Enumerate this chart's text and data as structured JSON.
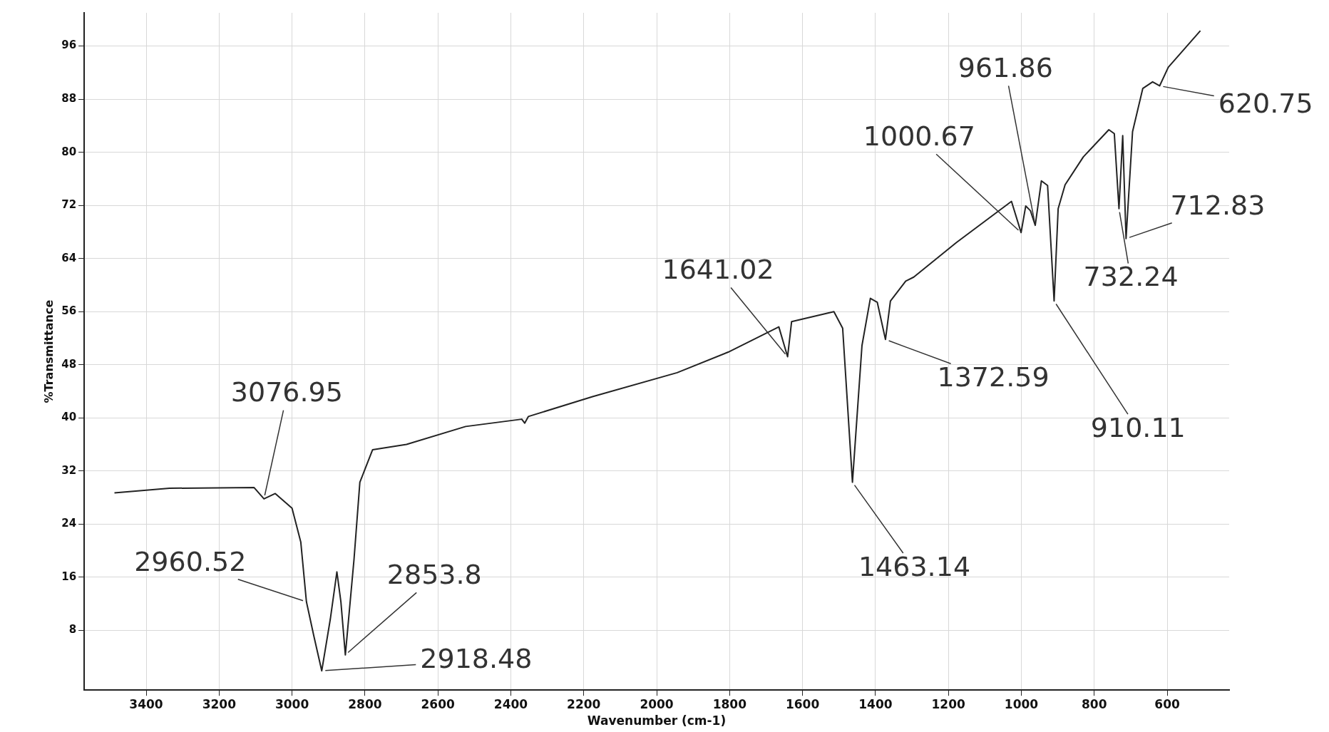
{
  "chart_data": {
    "type": "line",
    "xlabel": "Wavenumber (cm-1)",
    "ylabel": "%Transmittance",
    "xlim": [
      3570,
      430
    ],
    "xticks": [
      3400,
      3200,
      3000,
      2800,
      2600,
      2400,
      2200,
      2000,
      1800,
      1600,
      1400,
      1200,
      1000,
      800,
      600
    ],
    "ylim": [
      -1,
      101
    ],
    "yticks": [
      8,
      16,
      24,
      32,
      40,
      48,
      56,
      64,
      72,
      80,
      88,
      96
    ],
    "grid": true,
    "legend": false,
    "marker": "none",
    "line_style": "solid",
    "series": [
      {
        "color": "#222222",
        "x": [
          3487,
          3336,
          3104,
          3076.95,
          3046,
          3000,
          2976,
          2960.52,
          2940,
          2918.48,
          2895,
          2877,
          2866,
          2853.8,
          2830,
          2814,
          2779,
          2686,
          2524,
          2370,
          2362,
          2352,
          2176,
          1944,
          1804,
          1665,
          1641.02,
          1630,
          1514,
          1490,
          1463.14,
          1437,
          1414,
          1395,
          1372.59,
          1359,
          1317,
          1295,
          1178,
          1027,
          1000.67,
          988,
          975,
          961.86,
          945,
          928,
          910.11,
          899,
          880,
          830,
          760,
          745,
          732.24,
          722,
          712.83,
          695,
          667,
          640,
          620.75,
          597,
          509
        ],
        "values": [
          28.7,
          29.4,
          29.5,
          27.8,
          28.6,
          26.4,
          21.3,
          12.3,
          7.1,
          1.9,
          9.7,
          16.8,
          12.3,
          4.3,
          18.7,
          30.3,
          35.2,
          36,
          38.7,
          39.8,
          39.2,
          40.2,
          43.2,
          46.8,
          49.9,
          53.7,
          49.2,
          54.5,
          56,
          53.5,
          30.3,
          50.9,
          58,
          57.4,
          51.8,
          57.6,
          60.6,
          61.2,
          66.4,
          72.6,
          67.9,
          71.9,
          71.2,
          69,
          75.7,
          75,
          57.6,
          71.5,
          75.1,
          79.3,
          83.4,
          82.8,
          71.5,
          82.5,
          67,
          83.1,
          89.6,
          90.6,
          90,
          92.8,
          98.3
        ]
      }
    ],
    "annotations": [
      {
        "text": "3076.95",
        "x": 3076.95,
        "y": 27.8
      },
      {
        "text": "2960.52",
        "x": 2960.52,
        "y": 12.3
      },
      {
        "text": "2918.48",
        "x": 2918.48,
        "y": 1.9
      },
      {
        "text": "2853.8",
        "x": 2853.8,
        "y": 4.3
      },
      {
        "text": "1641.02",
        "x": 1641.02,
        "y": 49.2
      },
      {
        "text": "1463.14",
        "x": 1463.14,
        "y": 30.3
      },
      {
        "text": "1372.59",
        "x": 1372.59,
        "y": 51.8
      },
      {
        "text": "1000.67",
        "x": 1000.67,
        "y": 67.9
      },
      {
        "text": "961.86",
        "x": 961.86,
        "y": 69
      },
      {
        "text": "910.11",
        "x": 910.11,
        "y": 57.6
      },
      {
        "text": "732.24",
        "x": 732.24,
        "y": 71.5
      },
      {
        "text": "712.83",
        "x": 712.83,
        "y": 67
      },
      {
        "text": "620.75",
        "x": 620.75,
        "y": 90
      }
    ]
  }
}
